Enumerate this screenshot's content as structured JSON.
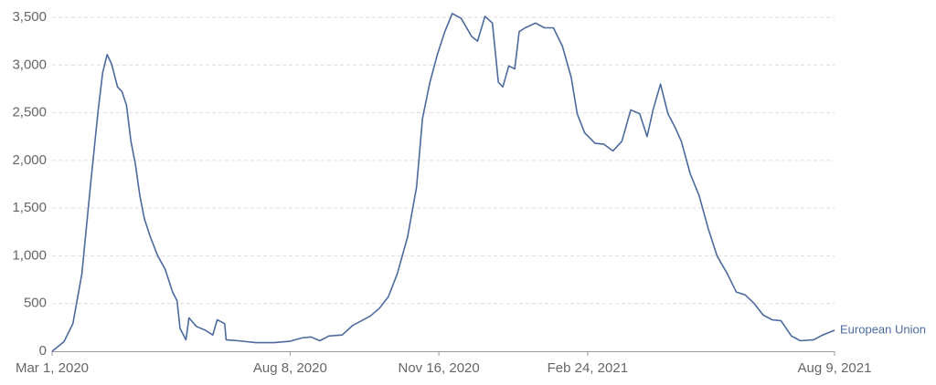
{
  "chart_data": {
    "type": "line",
    "x": [
      "2020-03-01",
      "2020-03-09",
      "2020-03-15",
      "2020-03-21",
      "2020-03-27",
      "2020-04-01",
      "2020-04-04",
      "2020-04-07",
      "2020-04-10",
      "2020-04-14",
      "2020-04-17",
      "2020-04-20",
      "2020-04-23",
      "2020-04-26",
      "2020-04-29",
      "2020-05-02",
      "2020-05-06",
      "2020-05-11",
      "2020-05-16",
      "2020-05-21",
      "2020-05-24",
      "2020-05-26",
      "2020-05-30",
      "2020-06-01",
      "2020-06-06",
      "2020-06-12",
      "2020-06-17",
      "2020-06-20",
      "2020-06-25",
      "2020-06-26",
      "2020-07-04",
      "2020-07-16",
      "2020-07-28",
      "2020-08-08",
      "2020-08-16",
      "2020-08-22",
      "2020-08-28",
      "2020-09-03",
      "2020-09-12",
      "2020-09-19",
      "2020-09-25",
      "2020-10-01",
      "2020-10-07",
      "2020-10-13",
      "2020-10-19",
      "2020-10-26",
      "2020-11-01",
      "2020-11-05",
      "2020-11-10",
      "2020-11-15",
      "2020-11-20",
      "2020-11-25",
      "2020-12-01",
      "2020-12-08",
      "2020-12-12",
      "2020-12-17",
      "2020-12-22",
      "2020-12-26",
      "2020-12-29",
      "2021-01-02",
      "2021-01-06",
      "2021-01-09",
      "2021-01-13",
      "2021-01-20",
      "2021-01-26",
      "2021-02-01",
      "2021-02-07",
      "2021-02-13",
      "2021-02-17",
      "2021-02-22",
      "2021-03-01",
      "2021-03-07",
      "2021-03-13",
      "2021-03-19",
      "2021-03-25",
      "2021-03-31",
      "2021-04-05",
      "2021-04-09",
      "2021-04-14",
      "2021-04-19",
      "2021-04-24",
      "2021-04-28",
      "2021-05-04",
      "2021-05-10",
      "2021-05-16",
      "2021-05-22",
      "2021-05-29",
      "2021-06-04",
      "2021-06-10",
      "2021-06-16",
      "2021-06-22",
      "2021-06-28",
      "2021-07-04",
      "2021-07-11",
      "2021-07-17",
      "2021-07-26",
      "2021-08-01",
      "2021-08-09"
    ],
    "series": [
      {
        "name": "European Union",
        "color": "#4c6a9c",
        "values": [
          0,
          100,
          290,
          810,
          1770,
          2530,
          2920,
          3110,
          3010,
          2770,
          2720,
          2580,
          2200,
          1960,
          1630,
          1390,
          1200,
          1000,
          860,
          620,
          530,
          240,
          120,
          350,
          260,
          220,
          170,
          330,
          290,
          120,
          110,
          90,
          90,
          105,
          140,
          150,
          110,
          160,
          170,
          270,
          320,
          370,
          450,
          570,
          810,
          1200,
          1720,
          2440,
          2820,
          3110,
          3350,
          3540,
          3490,
          3300,
          3250,
          3510,
          3440,
          2820,
          2770,
          2990,
          2960,
          3350,
          3390,
          3440,
          3390,
          3390,
          3200,
          2870,
          2490,
          2290,
          2180,
          2170,
          2100,
          2200,
          2530,
          2490,
          2250,
          2530,
          2800,
          2490,
          2340,
          2200,
          1860,
          1630,
          1290,
          1000,
          810,
          620,
          590,
          500,
          380,
          330,
          320,
          160,
          110,
          120,
          170,
          220
        ]
      }
    ],
    "xlim": [
      "2020-03-01",
      "2021-08-09"
    ],
    "xticks": [
      {
        "value": "2020-03-01",
        "label": "Mar 1, 2020"
      },
      {
        "value": "2020-08-08",
        "label": "Aug 8, 2020"
      },
      {
        "value": "2020-11-16",
        "label": "Nov 16, 2020"
      },
      {
        "value": "2021-02-24",
        "label": "Feb 24, 2021"
      },
      {
        "value": "2021-08-09",
        "label": "Aug 9, 2021"
      }
    ],
    "ylim": [
      0,
      3500
    ],
    "yticks": [
      0,
      500,
      {
        "value": 1000,
        "label": "1,000"
      },
      {
        "value": 1500,
        "label": "1,500"
      },
      {
        "value": 2000,
        "label": "2,000"
      },
      {
        "value": 2500,
        "label": "2,500"
      },
      {
        "value": 3000,
        "label": "3,000"
      },
      {
        "value": 3500,
        "label": "3,500"
      }
    ],
    "grid": true
  }
}
